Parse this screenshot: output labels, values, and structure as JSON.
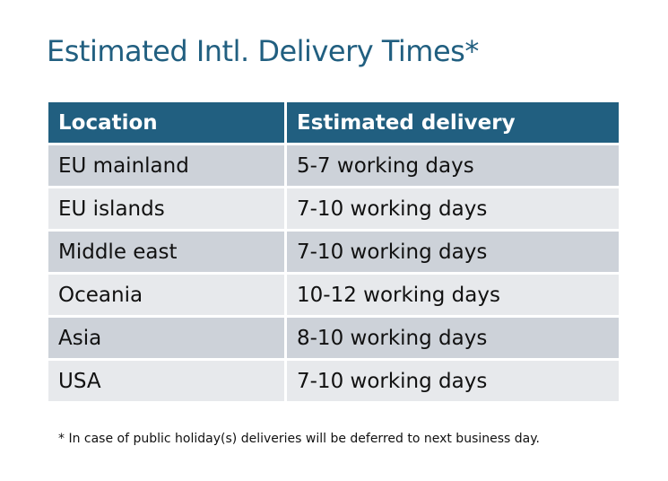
{
  "title": "Estimated Intl. Delivery Times*",
  "table": {
    "headers": [
      "Location",
      "Estimated delivery"
    ],
    "rows": [
      [
        "EU mainland",
        "5-7 working days"
      ],
      [
        "EU islands",
        "7-10 working days"
      ],
      [
        "Middle east",
        "7-10 working days"
      ],
      [
        "Oceania",
        "10-12 working days"
      ],
      [
        "Asia",
        "8-10 working days"
      ],
      [
        "USA",
        "7-10 working days"
      ]
    ]
  },
  "footnote": "* In case of public holiday(s) deliveries will be deferred to next business day.",
  "colors": {
    "header": "#215f80",
    "row_odd": "#cdd2d9",
    "row_even": "#e7e9ec",
    "title": "#215f80"
  }
}
